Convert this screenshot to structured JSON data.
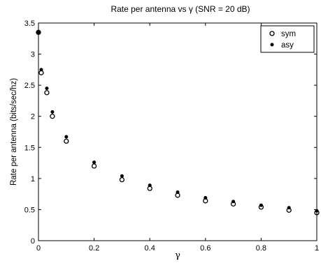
{
  "chart_data": {
    "type": "scatter",
    "title": "Rate per antenna vs γ (SNR = 20 dB)",
    "xlabel": "γ",
    "ylabel": "Rate per antenna (bits/sec/hz)",
    "xlim": [
      0,
      1
    ],
    "ylim": [
      0,
      3.5
    ],
    "xticks": [
      0,
      0.2,
      0.4,
      0.6,
      0.8,
      1
    ],
    "xtick_labels": [
      "0",
      "0.2",
      "0.4",
      "0.6",
      "0.8",
      "1"
    ],
    "yticks": [
      0,
      0.5,
      1,
      1.5,
      2,
      2.5,
      3,
      3.5
    ],
    "ytick_labels": [
      "0",
      "0.5",
      "1",
      "1.5",
      "2",
      "2.5",
      "3",
      "3.5"
    ],
    "grid": false,
    "legend_position": "top-right",
    "series": [
      {
        "name": "sym",
        "marker": "open-circle",
        "x": [
          0,
          0.01,
          0.03,
          0.05,
          0.1,
          0.2,
          0.3,
          0.4,
          0.5,
          0.6,
          0.7,
          0.8,
          0.9,
          1.0
        ],
        "y": [
          3.35,
          2.7,
          2.38,
          2.0,
          1.6,
          1.2,
          0.98,
          0.84,
          0.73,
          0.64,
          0.59,
          0.54,
          0.49,
          0.45
        ]
      },
      {
        "name": "asy",
        "marker": "filled-dot",
        "x": [
          0,
          0.01,
          0.03,
          0.05,
          0.1,
          0.2,
          0.3,
          0.4,
          0.5,
          0.6,
          0.7,
          0.8,
          0.9,
          1.0
        ],
        "y": [
          3.35,
          2.75,
          2.45,
          2.07,
          1.67,
          1.26,
          1.04,
          0.89,
          0.78,
          0.69,
          0.63,
          0.57,
          0.53,
          0.48
        ]
      }
    ]
  }
}
